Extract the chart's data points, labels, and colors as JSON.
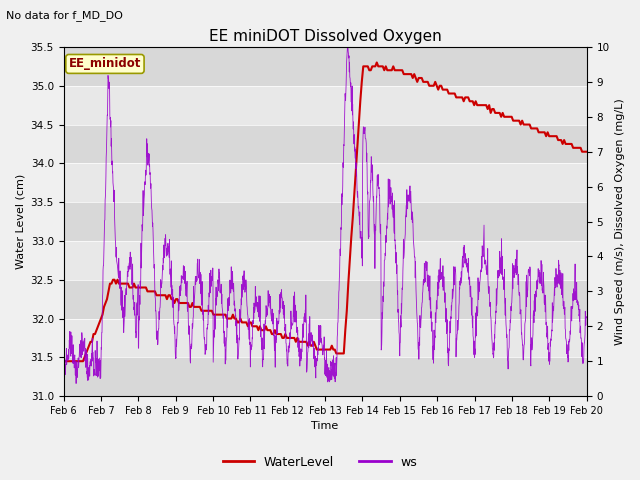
{
  "title": "EE miniDOT Dissolved Oxygen",
  "top_left_text": "No data for f_MD_DO",
  "annotation_text": "EE_minidot",
  "xlabel": "Time",
  "ylabel_left": "Water Level (cm)",
  "ylabel_right": "Wind Speed (m/s), Dissolved Oxygen (mg/L)",
  "ylim_left": [
    31.0,
    35.5
  ],
  "ylim_right": [
    0.0,
    10.0
  ],
  "yticks_left": [
    31.0,
    31.5,
    32.0,
    32.5,
    33.0,
    33.5,
    34.0,
    34.5,
    35.0,
    35.5
  ],
  "yticks_right": [
    0.0,
    1.0,
    2.0,
    3.0,
    4.0,
    5.0,
    6.0,
    7.0,
    8.0,
    9.0,
    10.0
  ],
  "color_water": "#cc0000",
  "color_ws": "#9900cc",
  "legend_labels": [
    "WaterLevel",
    "ws"
  ],
  "band_colors": [
    "#e8e8e8",
    "#d8d8d8"
  ],
  "fig_bg": "#f0f0f0",
  "n_points_water": 350,
  "n_points_ws": 2000
}
